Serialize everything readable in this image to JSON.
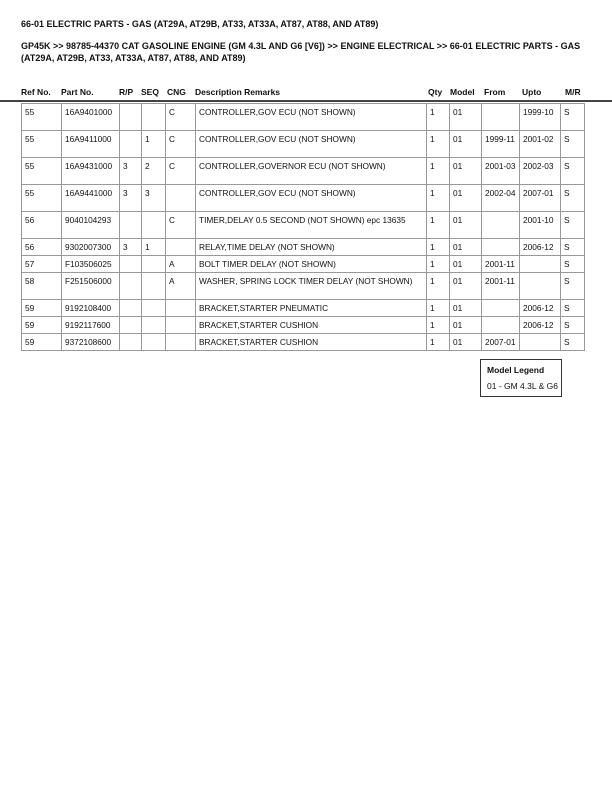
{
  "title": "66-01 ELECTRIC PARTS - GAS (AT29A, AT29B, AT33, AT33A, AT87, AT88, AND AT89)",
  "breadcrumb": "GP45K >> 98785-44370 CAT GASOLINE ENGINE (GM 4.3L AND G6 [V6]) >> ENGINE ELECTRICAL >> 66-01 ELECTRIC PARTS - GAS (AT29A, AT29B, AT33, AT33A, AT87, AT88, AND AT89)",
  "columns": [
    "Ref No.",
    "Part No.",
    "R/P",
    "SEQ",
    "CNG",
    "Description Remarks",
    "Qty",
    "Model",
    "From",
    "Upto",
    "M/R"
  ],
  "rows": [
    [
      "55",
      "16A9401000",
      "",
      "",
      "C",
      "CONTROLLER,GOV ECU (NOT SHOWN)",
      "1",
      "01",
      "",
      "1999-10",
      "S"
    ],
    [
      "55",
      "16A9411000",
      "",
      "1",
      "C",
      "CONTROLLER,GOV ECU (NOT SHOWN)",
      "1",
      "01",
      "1999-11",
      "2001-02",
      "S"
    ],
    [
      "55",
      "16A9431000",
      "3",
      "2",
      "C",
      "CONTROLLER,GOVERNOR ECU (NOT SHOWN)",
      "1",
      "01",
      "2001-03",
      "2002-03",
      "S"
    ],
    [
      "55",
      "16A9441000",
      "3",
      "3",
      "",
      "CONTROLLER,GOV ECU (NOT SHOWN)",
      "1",
      "01",
      "2002-04",
      "2007-01",
      "S"
    ],
    [
      "56",
      "9040104293",
      "",
      "",
      "C",
      "TIMER,DELAY 0.5 SECOND (NOT SHOWN) epc 13635",
      "1",
      "01",
      "",
      "2001-10",
      "S"
    ],
    [
      "56",
      "9302007300",
      "3",
      "1",
      "",
      "RELAY,TIME DELAY (NOT SHOWN)",
      "1",
      "01",
      "",
      "2006-12",
      "S"
    ],
    [
      "57",
      "F103506025",
      "",
      "",
      "A",
      "BOLT TIMER DELAY (NOT SHOWN)",
      "1",
      "01",
      "2001-11",
      "",
      "S"
    ],
    [
      "58",
      "F251506000",
      "",
      "",
      "A",
      "WASHER, SPRING LOCK TIMER DELAY (NOT SHOWN)",
      "1",
      "01",
      "2001-11",
      "",
      "S"
    ],
    [
      "59",
      "9192108400",
      "",
      "",
      "",
      "BRACKET,STARTER PNEUMATIC",
      "1",
      "01",
      "",
      "2006-12",
      "S"
    ],
    [
      "59",
      "9192117600",
      "",
      "",
      "",
      "BRACKET,STARTER CUSHION",
      "1",
      "01",
      "",
      "2006-12",
      "S"
    ],
    [
      "59",
      "9372108600",
      "",
      "",
      "",
      "BRACKET,STARTER CUSHION",
      "1",
      "01",
      "2007-01",
      "",
      "S"
    ]
  ],
  "legend": {
    "title": "Model Legend",
    "items": [
      "01 - GM 4.3L & G6"
    ]
  }
}
